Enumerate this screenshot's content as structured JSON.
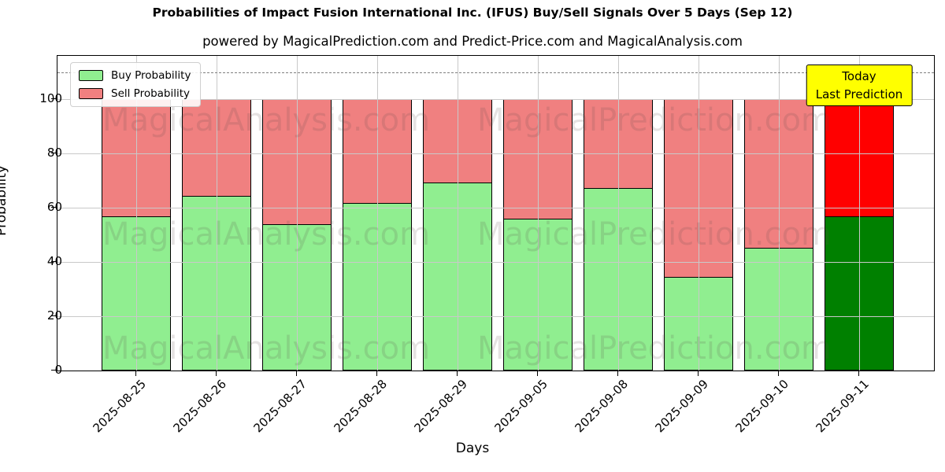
{
  "chart_data": {
    "type": "bar",
    "stacked": true,
    "title": "Probabilities of Impact Fusion International Inc. (IFUS) Buy/Sell Signals Over 5 Days (Sep 12)",
    "subtitle": "powered by MagicalPrediction.com and Predict-Price.com and MagicalAnalysis.com",
    "xlabel": "Days",
    "ylabel": "Probability",
    "categories": [
      "2025-08-25",
      "2025-08-26",
      "2025-08-27",
      "2025-08-28",
      "2025-08-29",
      "2025-09-05",
      "2025-09-08",
      "2025-09-09",
      "2025-09-10",
      "2025-09-11"
    ],
    "series": [
      {
        "name": "Buy Probability",
        "values": [
          57,
          64.5,
          54,
          62,
          69.5,
          56,
          67.5,
          34.5,
          45.5,
          57
        ],
        "color": "#90ee90",
        "today_color": "#008000"
      },
      {
        "name": "Sell Probability",
        "values": [
          43,
          35.5,
          46,
          38,
          30.5,
          44,
          32.5,
          65.5,
          54.5,
          43
        ],
        "color": "#f08080",
        "today_color": "#ff0000"
      }
    ],
    "today_index": 9,
    "yticks": [
      0,
      20,
      40,
      60,
      80,
      100
    ],
    "ylim": [
      0,
      116
    ],
    "dashed_line_y": 110,
    "grid": true,
    "legend_position": "upper left",
    "annotation": {
      "lines": [
        "Today",
        "Last Prediction"
      ],
      "bg_color": "#ffff00"
    },
    "watermarks": {
      "texts": [
        "MagicalAnalysis.com",
        "MagicalPrediction.com"
      ],
      "color": "rgba(95,75,75,0.16)"
    },
    "bar_edge_color": "#000000"
  }
}
